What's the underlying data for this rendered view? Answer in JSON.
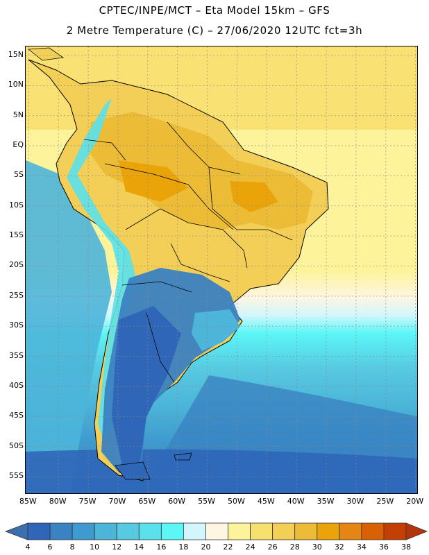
{
  "header": {
    "line1": "CPTEC/INPE/MCT –  Eta Model 15km – GFS",
    "line2": "2 Metre Temperature (C) – 27/06/2020 12UTC fct=3h"
  },
  "map": {
    "variable": "2 Metre Temperature",
    "units": "C",
    "lat_labels": [
      "15N",
      "10N",
      "5N",
      "EQ",
      "5S",
      "10S",
      "15S",
      "20S",
      "25S",
      "30S",
      "35S",
      "40S",
      "45S",
      "50S",
      "55S"
    ],
    "lon_labels": [
      "85W",
      "80W",
      "75W",
      "70W",
      "65W",
      "60W",
      "55W",
      "50W",
      "45W",
      "40W",
      "35W",
      "30W",
      "25W",
      "20W"
    ],
    "lat_values": [
      15,
      10,
      5,
      0,
      -5,
      -10,
      -15,
      -20,
      -25,
      -30,
      -35,
      -40,
      -45,
      -50,
      -55
    ],
    "lon_values": [
      -85,
      -80,
      -75,
      -70,
      -65,
      -60,
      -55,
      -50,
      -45,
      -40,
      -35,
      -30,
      -25,
      -20
    ],
    "extent": {
      "lon_min": -85.5,
      "lon_max": -19.5,
      "lat_min": -58,
      "lat_max": 16.5
    }
  },
  "colorbar": {
    "labels": [
      "4",
      "6",
      "8",
      "10",
      "12",
      "14",
      "16",
      "18",
      "20",
      "22",
      "24",
      "26",
      "28",
      "30",
      "32",
      "34",
      "36",
      "38"
    ],
    "colors": [
      "#3b6fad",
      "#2f66b8",
      "#3a82c2",
      "#3f9bcf",
      "#4cb5d9",
      "#57c9e1",
      "#5ae1ec",
      "#5cf6f7",
      "#d2f6fb",
      "#fdf6e2",
      "#fdf39b",
      "#f8e06f",
      "#f3cf58",
      "#ecbc36",
      "#eaa308",
      "#e58514",
      "#da6004",
      "#c43f04",
      "#b5350a"
    ]
  }
}
